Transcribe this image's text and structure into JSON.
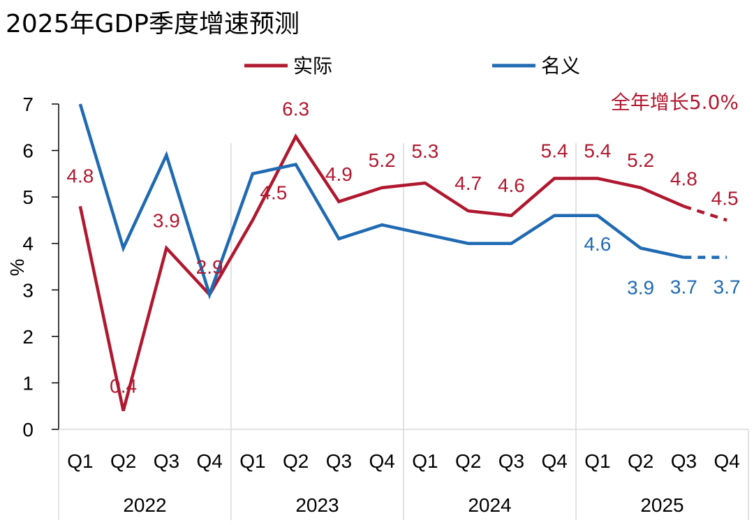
{
  "chart_data": {
    "type": "line",
    "title": "2025年GDP季度增速预测",
    "ylabel": "%",
    "ylim": [
      0,
      7
    ],
    "yticks": [
      0,
      1,
      2,
      3,
      4,
      5,
      6,
      7
    ],
    "categories": [
      "Q1",
      "Q2",
      "Q3",
      "Q4",
      "Q1",
      "Q2",
      "Q3",
      "Q4",
      "Q1",
      "Q2",
      "Q3",
      "Q4",
      "Q1",
      "Q2",
      "Q3",
      "Q4"
    ],
    "year_groups": [
      "2022",
      "2023",
      "2024",
      "2025"
    ],
    "annotation": "全年增长5.0%",
    "colors": {
      "real": "#B0182F",
      "nominal": "#1F6AB2",
      "grid": "#D9D9D9",
      "axis": "#000000"
    },
    "series": [
      {
        "name": "实际",
        "key": "real",
        "values": [
          4.8,
          0.4,
          3.9,
          2.9,
          4.5,
          6.3,
          4.9,
          5.2,
          5.3,
          4.7,
          4.6,
          5.4,
          5.4,
          5.2,
          4.8,
          4.5
        ],
        "labels": [
          "4.8",
          "0.4",
          "3.9",
          "2.9",
          "4.5",
          "6.3",
          "4.9",
          "5.2",
          "5.3",
          "4.7",
          "4.6",
          "5.4",
          "5.4",
          "5.2",
          "4.8",
          "4.5"
        ],
        "dashed_from_index": 14
      },
      {
        "name": "名义",
        "key": "nominal",
        "values": [
          7.0,
          3.9,
          5.9,
          2.9,
          5.5,
          5.7,
          4.1,
          4.4,
          4.2,
          4.0,
          4.0,
          4.6,
          4.6,
          3.9,
          3.7,
          3.7
        ],
        "labels": [
          null,
          null,
          null,
          null,
          null,
          null,
          null,
          null,
          null,
          null,
          null,
          null,
          "4.6",
          "3.9",
          "3.7",
          "3.7"
        ],
        "dashed_from_index": 14
      }
    ]
  }
}
